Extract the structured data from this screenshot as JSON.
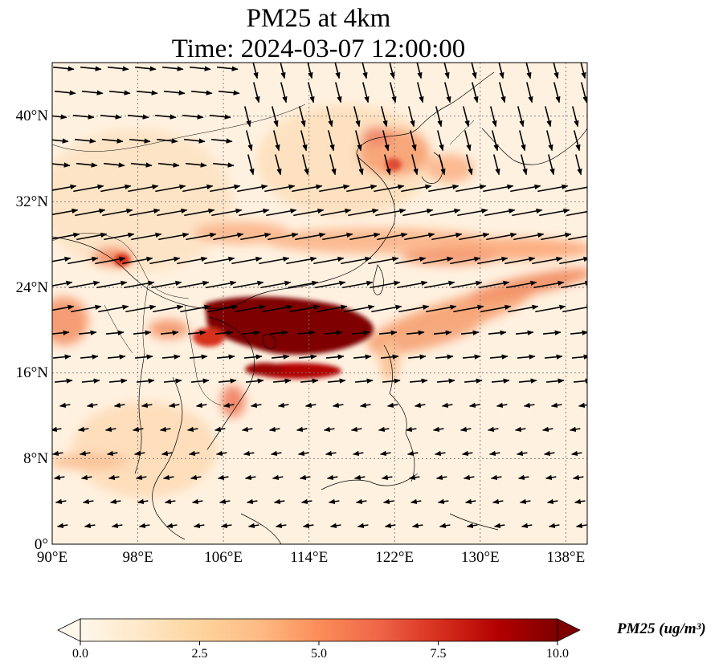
{
  "title": {
    "line1": "PM25 at 4km",
    "line2": "Time: 2024-03-07 12:00:00"
  },
  "map": {
    "lon_range": [
      90,
      140
    ],
    "lat_range": [
      0,
      45
    ],
    "projection": "PlateCarree",
    "gridlines": "dotted",
    "coastlines": true,
    "country_borders": true,
    "x_ticks": [
      "90°E",
      "98°E",
      "106°E",
      "114°E",
      "122°E",
      "130°E",
      "138°E"
    ],
    "y_ticks": [
      "0°",
      "8°N",
      "16°N",
      "24°N",
      "32°N",
      "40°N"
    ],
    "field": "PM25 concentration (shaded)",
    "overlay": "wind vectors (arrows)"
  },
  "colorbar": {
    "colormap": "OrRd",
    "min": 0.0,
    "max": 10.0,
    "ticks": [
      "0.0",
      "2.5",
      "5.0",
      "7.5",
      "10.0"
    ],
    "extend": "both",
    "label": "PM25 (ug/m³)",
    "colors": [
      "#fff7ec",
      "#fee8c8",
      "#fdd49e",
      "#fdbb84",
      "#fc8d59",
      "#ef6548",
      "#d7301f",
      "#b30000",
      "#7f0000"
    ]
  }
}
